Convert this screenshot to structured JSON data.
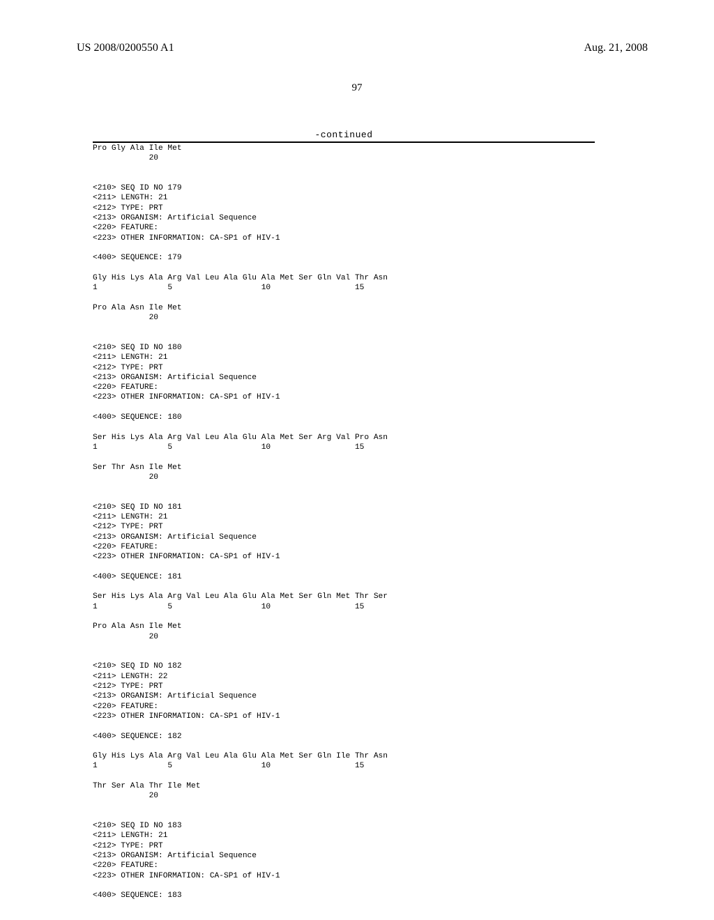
{
  "header": {
    "publication_number": "US 2008/0200550 A1",
    "publication_date": "Aug. 21, 2008"
  },
  "page_number": "97",
  "continued_label": "-continued",
  "sequences": {
    "tail_178": {
      "line2": "Pro Gly Ala Ile Met",
      "num2": "            20"
    },
    "s179": {
      "h1": "<210> SEQ ID NO 179",
      "h2": "<211> LENGTH: 21",
      "h3": "<212> TYPE: PRT",
      "h4": "<213> ORGANISM: Artificial Sequence",
      "h5": "<220> FEATURE:",
      "h6": "<223> OTHER INFORMATION: CA-SP1 of HIV-1",
      "seqline": "<400> SEQUENCE: 179",
      "line1": "Gly His Lys Ala Arg Val Leu Ala Glu Ala Met Ser Gln Val Thr Asn",
      "num1": "1               5                   10                  15",
      "line2": "Pro Ala Asn Ile Met",
      "num2": "            20"
    },
    "s180": {
      "h1": "<210> SEQ ID NO 180",
      "h2": "<211> LENGTH: 21",
      "h3": "<212> TYPE: PRT",
      "h4": "<213> ORGANISM: Artificial Sequence",
      "h5": "<220> FEATURE:",
      "h6": "<223> OTHER INFORMATION: CA-SP1 of HIV-1",
      "seqline": "<400> SEQUENCE: 180",
      "line1": "Ser His Lys Ala Arg Val Leu Ala Glu Ala Met Ser Arg Val Pro Asn",
      "num1": "1               5                   10                  15",
      "line2": "Ser Thr Asn Ile Met",
      "num2": "            20"
    },
    "s181": {
      "h1": "<210> SEQ ID NO 181",
      "h2": "<211> LENGTH: 21",
      "h3": "<212> TYPE: PRT",
      "h4": "<213> ORGANISM: Artificial Sequence",
      "h5": "<220> FEATURE:",
      "h6": "<223> OTHER INFORMATION: CA-SP1 of HIV-1",
      "seqline": "<400> SEQUENCE: 181",
      "line1": "Ser His Lys Ala Arg Val Leu Ala Glu Ala Met Ser Gln Met Thr Ser",
      "num1": "1               5                   10                  15",
      "line2": "Pro Ala Asn Ile Met",
      "num2": "            20"
    },
    "s182": {
      "h1": "<210> SEQ ID NO 182",
      "h2": "<211> LENGTH: 22",
      "h3": "<212> TYPE: PRT",
      "h4": "<213> ORGANISM: Artificial Sequence",
      "h5": "<220> FEATURE:",
      "h6": "<223> OTHER INFORMATION: CA-SP1 of HIV-1",
      "seqline": "<400> SEQUENCE: 182",
      "line1": "Gly His Lys Ala Arg Val Leu Ala Glu Ala Met Ser Gln Ile Thr Asn",
      "num1": "1               5                   10                  15",
      "line2": "Thr Ser Ala Thr Ile Met",
      "num2": "            20"
    },
    "s183": {
      "h1": "<210> SEQ ID NO 183",
      "h2": "<211> LENGTH: 21",
      "h3": "<212> TYPE: PRT",
      "h4": "<213> ORGANISM: Artificial Sequence",
      "h5": "<220> FEATURE:",
      "h6": "<223> OTHER INFORMATION: CA-SP1 of HIV-1",
      "seqline": "<400> SEQUENCE: 183"
    }
  }
}
